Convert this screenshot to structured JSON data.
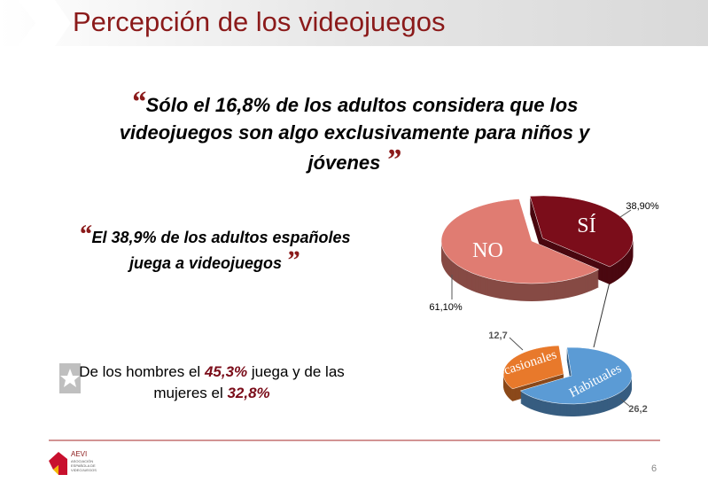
{
  "slide": {
    "title": "Percepción de los videojuegos",
    "quote_open": "“",
    "quote_close": "”",
    "quote1": "Sólo el 16,8% de los adultos considera que los videojuegos son algo exclusivamente para niños y jóvenes",
    "quote2": "El 38,9% de los adultos españoles juega a videojuegos",
    "note": [
      "De los hombres el ",
      "45,3%",
      " juega y de las mujeres el ",
      "32,8%"
    ],
    "page_number": "6",
    "logo": [
      "AEVI",
      "ASOCIACIÓN",
      "ESPAÑOLA DE",
      "VIDEOJUEGOS"
    ]
  },
  "chart_data": [
    {
      "type": "pie",
      "categories": [
        "SÍ",
        "NO"
      ],
      "values": [
        38.9,
        61.1
      ],
      "value_labels": [
        "38,90%",
        "61,10%"
      ],
      "colors": [
        "#7b0d1a",
        "#e07c72"
      ]
    },
    {
      "type": "pie",
      "categories": [
        "Ocasionales",
        "Habituales"
      ],
      "values": [
        12.7,
        26.2
      ],
      "value_labels": [
        "12,7",
        "26,2"
      ],
      "colors": [
        "#e8792b",
        "#5b9bd5"
      ]
    }
  ]
}
